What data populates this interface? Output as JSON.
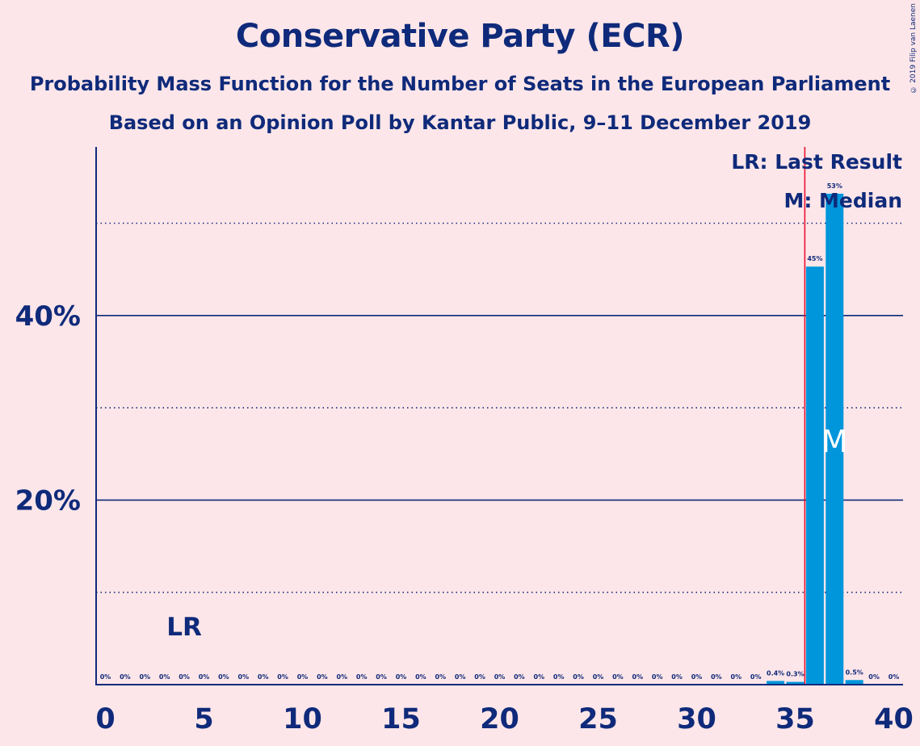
{
  "title": "Conservative Party (ECR)",
  "subtitle1": "Probability Mass Function for the Number of Seats in the European Parliament",
  "subtitle2": "Based on an Opinion Poll by Kantar Public, 9–11 December 2019",
  "copyright": "© 2019 Filip van Laenen",
  "legend": {
    "last_result": "LR: Last Result",
    "median": "M: Median"
  },
  "markers": {
    "lr_label": "LR",
    "median_label": "M"
  },
  "colors": {
    "background": "#fde6e9",
    "bar": "#0096db",
    "text": "#0f2a7a",
    "last_result_line": "#e8112d"
  },
  "chart_data": {
    "type": "bar",
    "xlabel": "",
    "ylabel": "",
    "xlim": [
      0,
      40
    ],
    "ylim": [
      0,
      58
    ],
    "x_ticks": [
      0,
      5,
      10,
      15,
      20,
      25,
      30,
      35,
      40
    ],
    "y_ticks_labeled": [
      {
        "value": 20,
        "label": "20%"
      },
      {
        "value": 40,
        "label": "40%"
      }
    ],
    "y_gridlines_dotted": [
      10,
      30,
      50
    ],
    "y_gridlines_solid": [
      20,
      40
    ],
    "last_result_seats": 36,
    "median_seats": 37,
    "lr_marker_seat": 4,
    "bars": [
      {
        "seats": 0,
        "value": 0,
        "label": "0%"
      },
      {
        "seats": 1,
        "value": 0,
        "label": "0%"
      },
      {
        "seats": 2,
        "value": 0,
        "label": "0%"
      },
      {
        "seats": 3,
        "value": 0,
        "label": "0%"
      },
      {
        "seats": 4,
        "value": 0,
        "label": "0%"
      },
      {
        "seats": 5,
        "value": 0,
        "label": "0%"
      },
      {
        "seats": 6,
        "value": 0,
        "label": "0%"
      },
      {
        "seats": 7,
        "value": 0,
        "label": "0%"
      },
      {
        "seats": 8,
        "value": 0,
        "label": "0%"
      },
      {
        "seats": 9,
        "value": 0,
        "label": "0%"
      },
      {
        "seats": 10,
        "value": 0,
        "label": "0%"
      },
      {
        "seats": 11,
        "value": 0,
        "label": "0%"
      },
      {
        "seats": 12,
        "value": 0,
        "label": "0%"
      },
      {
        "seats": 13,
        "value": 0,
        "label": "0%"
      },
      {
        "seats": 14,
        "value": 0,
        "label": "0%"
      },
      {
        "seats": 15,
        "value": 0,
        "label": "0%"
      },
      {
        "seats": 16,
        "value": 0,
        "label": "0%"
      },
      {
        "seats": 17,
        "value": 0,
        "label": "0%"
      },
      {
        "seats": 18,
        "value": 0,
        "label": "0%"
      },
      {
        "seats": 19,
        "value": 0,
        "label": "0%"
      },
      {
        "seats": 20,
        "value": 0,
        "label": "0%"
      },
      {
        "seats": 21,
        "value": 0,
        "label": "0%"
      },
      {
        "seats": 22,
        "value": 0,
        "label": "0%"
      },
      {
        "seats": 23,
        "value": 0,
        "label": "0%"
      },
      {
        "seats": 24,
        "value": 0,
        "label": "0%"
      },
      {
        "seats": 25,
        "value": 0,
        "label": "0%"
      },
      {
        "seats": 26,
        "value": 0,
        "label": "0%"
      },
      {
        "seats": 27,
        "value": 0,
        "label": "0%"
      },
      {
        "seats": 28,
        "value": 0,
        "label": "0%"
      },
      {
        "seats": 29,
        "value": 0,
        "label": "0%"
      },
      {
        "seats": 30,
        "value": 0,
        "label": "0%"
      },
      {
        "seats": 31,
        "value": 0,
        "label": "0%"
      },
      {
        "seats": 32,
        "value": 0,
        "label": "0%"
      },
      {
        "seats": 33,
        "value": 0,
        "label": "0%"
      },
      {
        "seats": 34,
        "value": 0.4,
        "label": "0.4%"
      },
      {
        "seats": 35,
        "value": 0.3,
        "label": "0.3%"
      },
      {
        "seats": 36,
        "value": 45.3,
        "label": "45%"
      },
      {
        "seats": 37,
        "value": 53.2,
        "label": "53%"
      },
      {
        "seats": 38,
        "value": 0.5,
        "label": "0.5%"
      },
      {
        "seats": 39,
        "value": 0,
        "label": "0%"
      },
      {
        "seats": 40,
        "value": 0,
        "label": "0%"
      }
    ]
  }
}
